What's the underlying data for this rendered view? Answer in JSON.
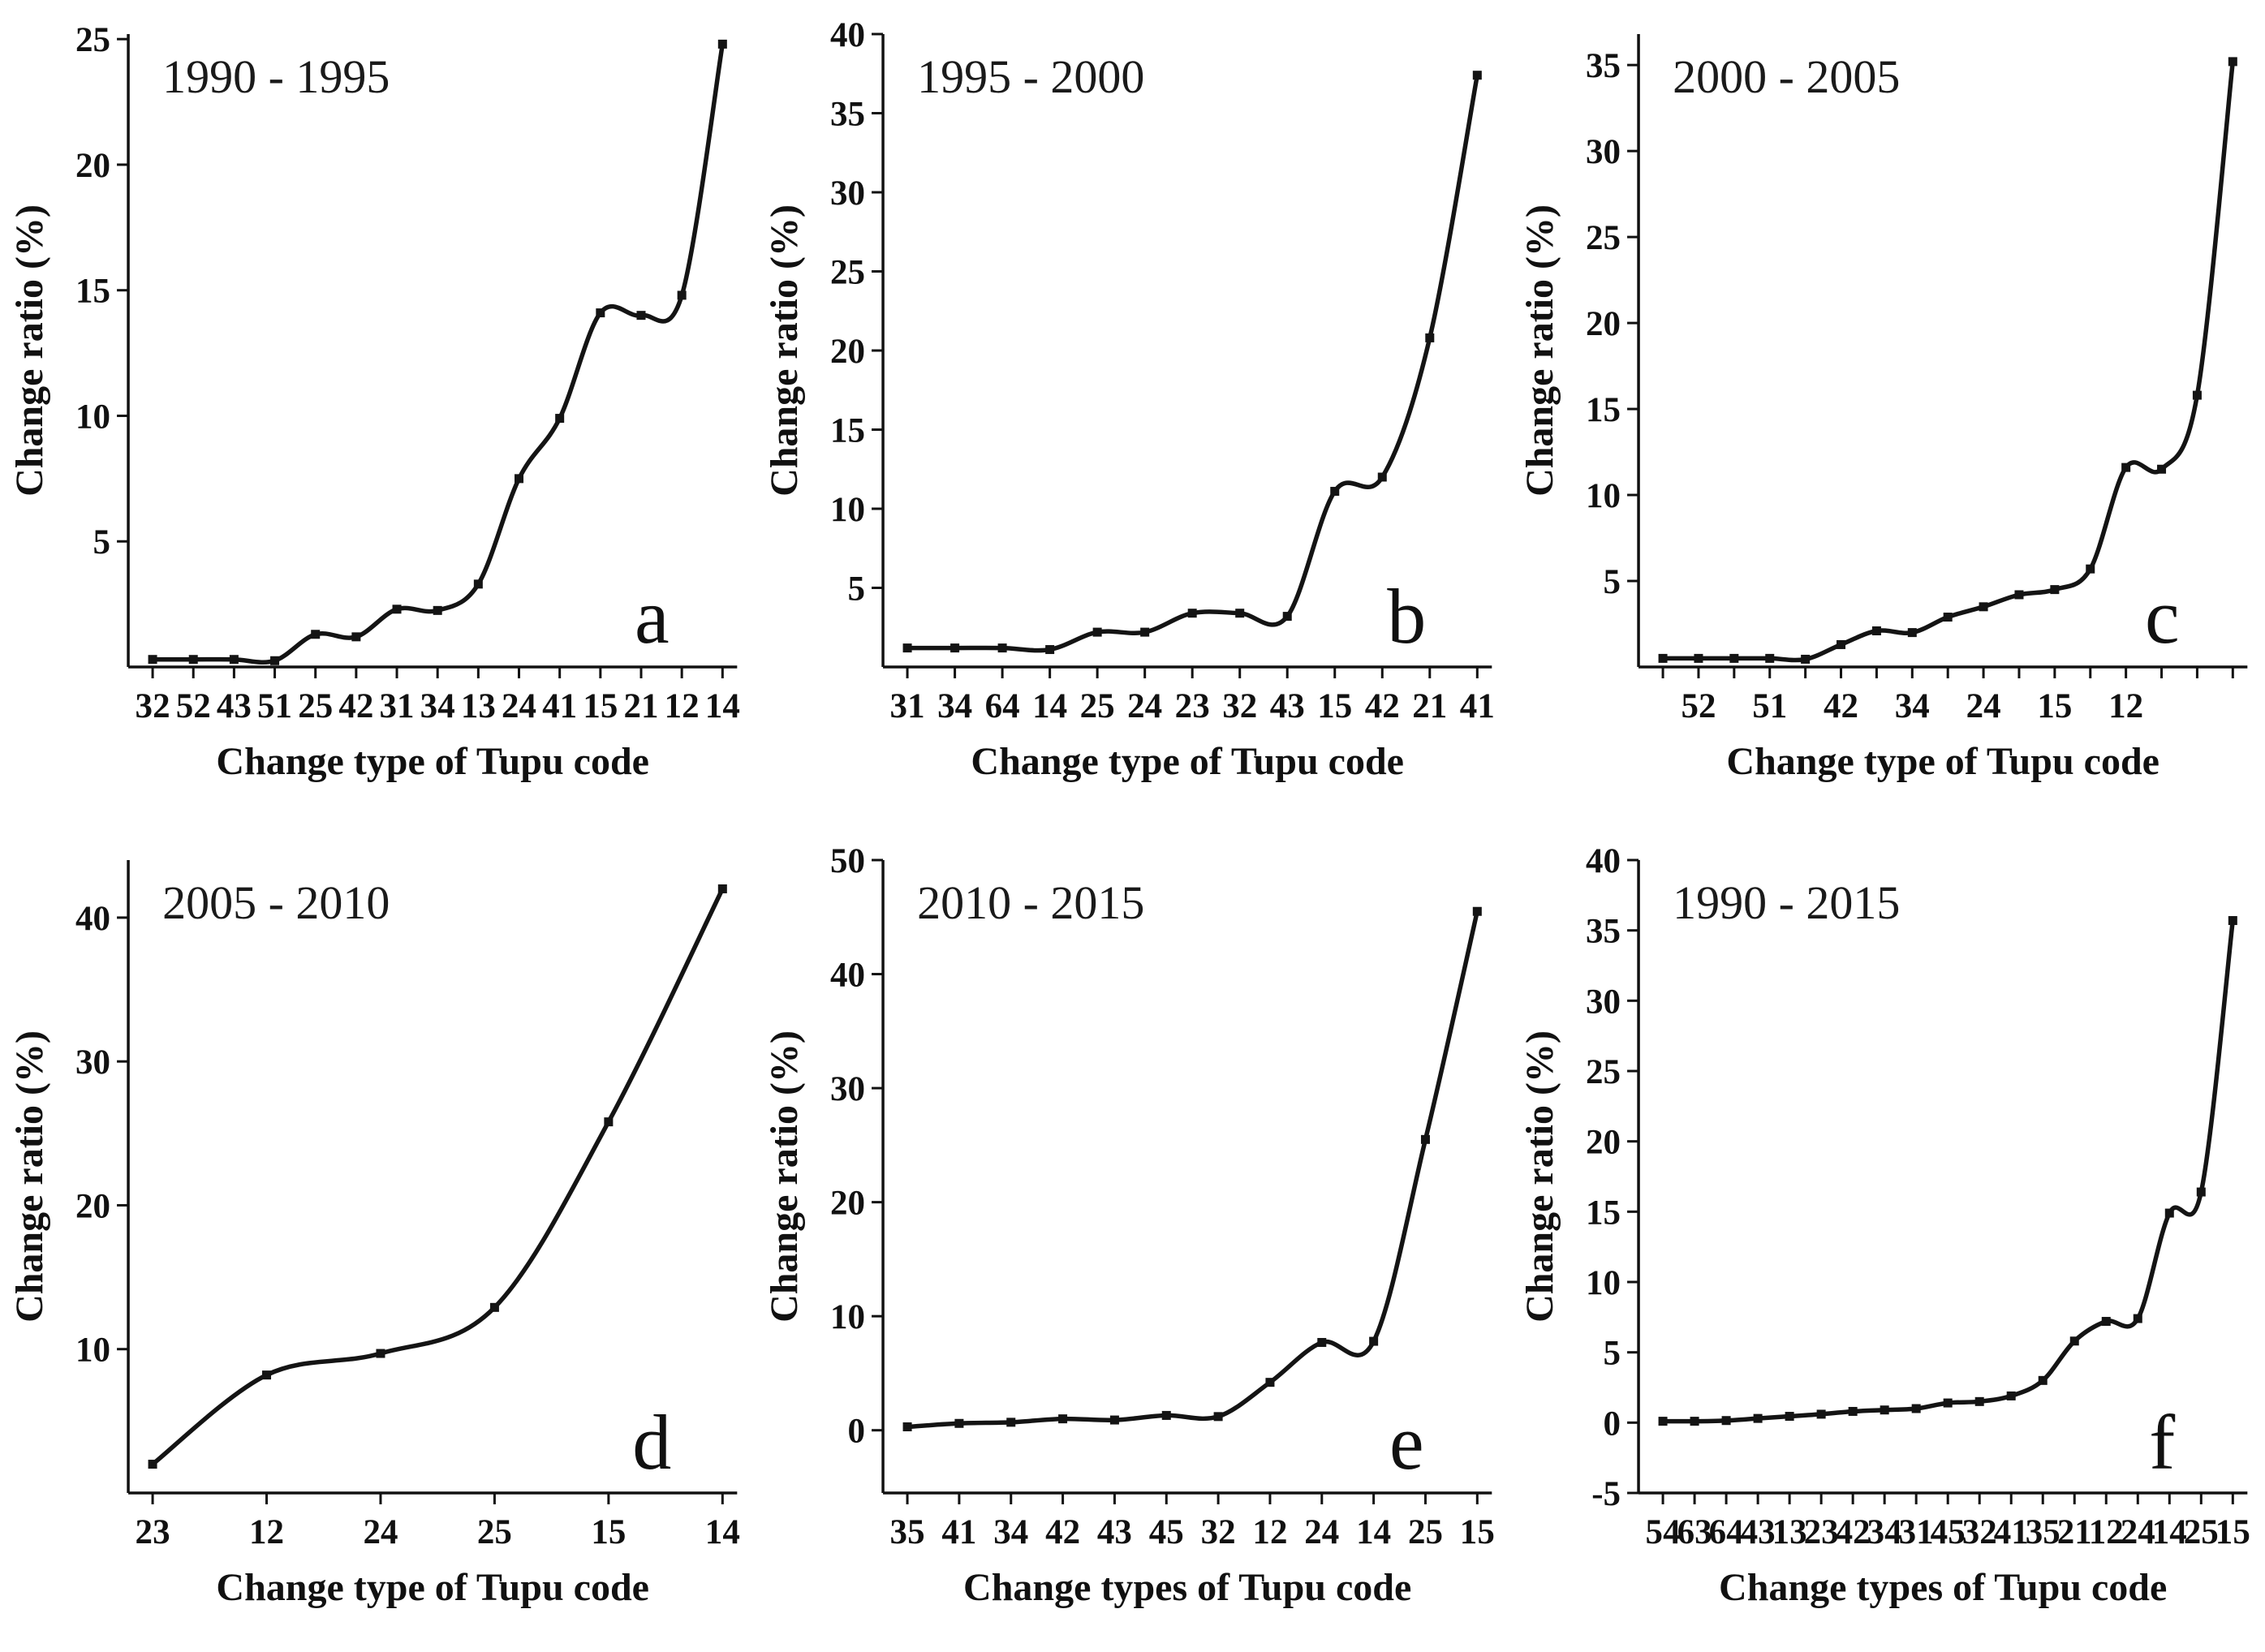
{
  "figure": {
    "background": "#ffffff",
    "line_color": "#141414",
    "axis_color": "#111111",
    "marker_shape": "square"
  },
  "chart_data": [
    {
      "type": "line",
      "letter": "a",
      "title": "1990 - 1995",
      "xlabel": "Change type of Tupu code",
      "ylabel": "Change ratio (%)",
      "categories": [
        "32",
        "52",
        "43",
        "51",
        "25",
        "42",
        "31",
        "34",
        "13",
        "24",
        "41",
        "15",
        "21",
        "12",
        "14"
      ],
      "values": [
        0.3,
        0.3,
        0.3,
        0.25,
        1.3,
        1.2,
        2.3,
        2.25,
        3.3,
        7.5,
        9.9,
        14.1,
        14.0,
        14.8,
        24.8
      ],
      "yticks": [
        5,
        10,
        15,
        20,
        25
      ],
      "ylim": [
        0,
        25.2
      ],
      "grid": false,
      "legend": "none"
    },
    {
      "type": "line",
      "letter": "b",
      "title": "1995 - 2000",
      "xlabel": "Change type of Tupu code",
      "ylabel": "Change ratio (%)",
      "categories": [
        "31",
        "34",
        "64",
        "14",
        "25",
        "24",
        "23",
        "32",
        "43",
        "15",
        "42",
        "21",
        "41"
      ],
      "values": [
        1.2,
        1.2,
        1.2,
        1.1,
        2.2,
        2.2,
        3.4,
        3.4,
        3.2,
        11.1,
        12.0,
        20.8,
        37.4
      ],
      "yticks": [
        5,
        10,
        15,
        20,
        25,
        30,
        35,
        40
      ],
      "ylim": [
        0,
        40
      ],
      "grid": false,
      "legend": "none"
    },
    {
      "type": "line",
      "letter": "c",
      "title": "2000 - 2005",
      "xlabel": "Change type of Tupu code",
      "ylabel": "Change ratio (%)",
      "categories": [
        "",
        "52",
        "",
        "51",
        "",
        "42",
        "",
        "34",
        "",
        "24",
        "",
        "15",
        "",
        "12",
        "",
        "",
        ""
      ],
      "values": [
        0.5,
        0.5,
        0.5,
        0.5,
        0.45,
        1.3,
        2.1,
        2.0,
        2.9,
        3.5,
        4.2,
        4.5,
        5.7,
        11.6,
        11.5,
        15.8,
        35.2
      ],
      "yticks": [
        5,
        10,
        15,
        20,
        25,
        30,
        35
      ],
      "ylim": [
        0,
        36.8
      ],
      "grid": false,
      "legend": "none"
    },
    {
      "type": "line",
      "letter": "d",
      "title": "2005 - 2010",
      "xlabel": "Change type of Tupu code",
      "ylabel": "Change ratio (%)",
      "categories": [
        "23",
        "12",
        "24",
        "25",
        "15",
        "14"
      ],
      "values": [
        2.0,
        8.2,
        9.7,
        12.9,
        25.8,
        42.0
      ],
      "yticks": [
        10,
        20,
        30,
        40
      ],
      "ylim": [
        0,
        44
      ],
      "grid": false,
      "legend": "none"
    },
    {
      "type": "line",
      "letter": "e",
      "title": "2010 - 2015",
      "xlabel": "Change types of Tupu code",
      "ylabel": "Change ratio (%)",
      "categories": [
        "35",
        "41",
        "34",
        "42",
        "43",
        "45",
        "32",
        "12",
        "24",
        "14",
        "25",
        "15"
      ],
      "values": [
        0.3,
        0.6,
        0.7,
        1.0,
        0.9,
        1.3,
        1.2,
        4.2,
        7.7,
        7.8,
        25.5,
        45.5
      ],
      "yticks": [
        0,
        10,
        20,
        30,
        40,
        50
      ],
      "ylim": [
        -5.5,
        50
      ],
      "grid": false,
      "legend": "none"
    },
    {
      "type": "line",
      "letter": "f",
      "title": "1990 - 2015",
      "xlabel": "Change types of Tupu code",
      "ylabel": "Change ratio (%)",
      "categories": [
        "54",
        "63",
        "64",
        "43",
        "13",
        "23",
        "42",
        "34",
        "31",
        "45",
        "32",
        "41",
        "35",
        "21",
        "12",
        "24",
        "14",
        "25",
        "15"
      ],
      "values": [
        0.1,
        0.1,
        0.15,
        0.3,
        0.45,
        0.6,
        0.8,
        0.9,
        1.0,
        1.4,
        1.5,
        1.9,
        3.0,
        5.8,
        7.2,
        7.4,
        14.9,
        16.4,
        35.7
      ],
      "yticks": [
        -5,
        0,
        5,
        10,
        15,
        20,
        25,
        30,
        35,
        40
      ],
      "ylim": [
        -5,
        40
      ],
      "grid": false,
      "legend": "none"
    }
  ]
}
